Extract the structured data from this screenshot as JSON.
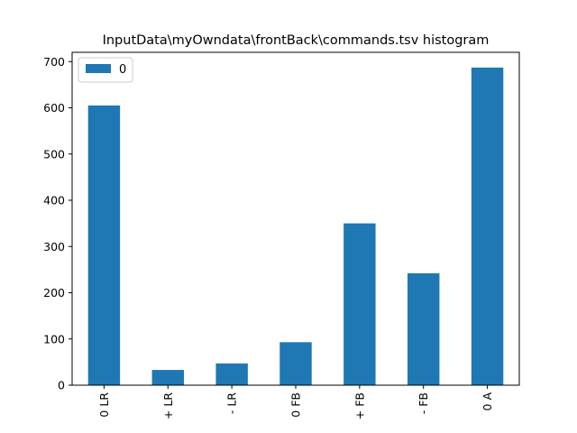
{
  "chart_data": {
    "type": "bar",
    "title": "InputData\\myOwndata\\frontBack\\commands.tsv histogram",
    "categories": [
      "0 LR",
      "+ LR",
      "- LR",
      "0 FB",
      "+ FB",
      "- FB",
      "0 A"
    ],
    "series": [
      {
        "name": "0",
        "values": [
          605,
          33,
          47,
          93,
          350,
          242,
          687
        ]
      }
    ],
    "xlabel": "",
    "ylabel": "",
    "ylim": [
      0,
      720
    ],
    "yticks": [
      0,
      100,
      200,
      300,
      400,
      500,
      600,
      700
    ],
    "grid": false,
    "legend_position": "top-left",
    "bar_color": "#1f77b4"
  }
}
